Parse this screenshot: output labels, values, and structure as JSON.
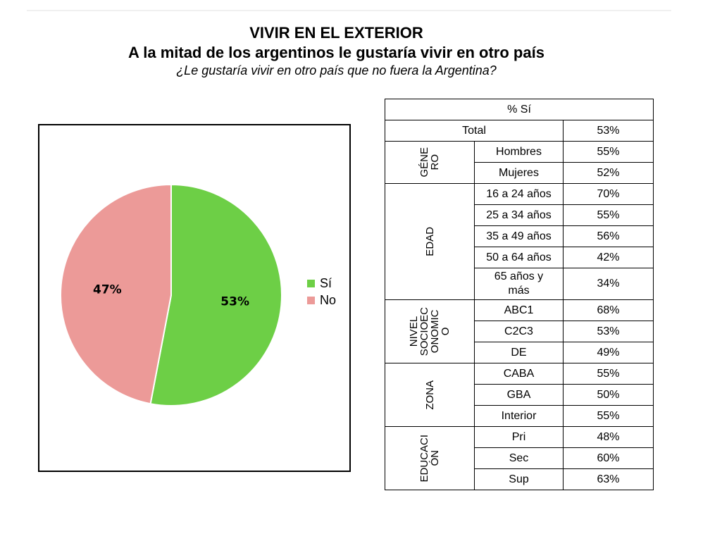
{
  "header": {
    "kicker": "VIVIR EN EL EXTERIOR",
    "title": "A la mitad de los argentinos le gustaría vivir en otro país",
    "question": "¿Le gustaría vivir en otro país que no fuera la Argentina?"
  },
  "chart_data": {
    "type": "pie",
    "labels": [
      "Sí",
      "No"
    ],
    "values": [
      53,
      47
    ],
    "data_labels": [
      "53%",
      "47%"
    ],
    "colors": [
      "#6dcf46",
      "#ec9a98"
    ],
    "legend_position": "right"
  },
  "table": {
    "header": "% Sí",
    "total": {
      "label": "Total",
      "value": "53%"
    },
    "groups": [
      {
        "name": "GÉNE\nRO",
        "rows": [
          {
            "label": "Hombres",
            "value": "55%"
          },
          {
            "label": "Mujeres",
            "value": "52%"
          }
        ]
      },
      {
        "name": "EDAD",
        "rows": [
          {
            "label": "16 a 24 años",
            "value": "70%"
          },
          {
            "label": "25 a 34 años",
            "value": "55%"
          },
          {
            "label": "35 a 49 años",
            "value": "56%"
          },
          {
            "label": "50 a 64 años",
            "value": "42%"
          },
          {
            "label": "65 años y más",
            "value": "34%"
          }
        ]
      },
      {
        "name": "NIVEL\nSOCIOEC\nONOMIC\nO",
        "rows": [
          {
            "label": "ABC1",
            "value": "68%"
          },
          {
            "label": "C2C3",
            "value": "53%"
          },
          {
            "label": "DE",
            "value": "49%"
          }
        ]
      },
      {
        "name": "ZONA",
        "rows": [
          {
            "label": "CABA",
            "value": "55%"
          },
          {
            "label": "GBA",
            "value": "50%"
          },
          {
            "label": "Interior",
            "value": "55%"
          }
        ]
      },
      {
        "name": "EDUCACI\nÓN",
        "rows": [
          {
            "label": "Pri",
            "value": "48%"
          },
          {
            "label": "Sec",
            "value": "60%"
          },
          {
            "label": "Sup",
            "value": "63%"
          }
        ]
      }
    ]
  }
}
